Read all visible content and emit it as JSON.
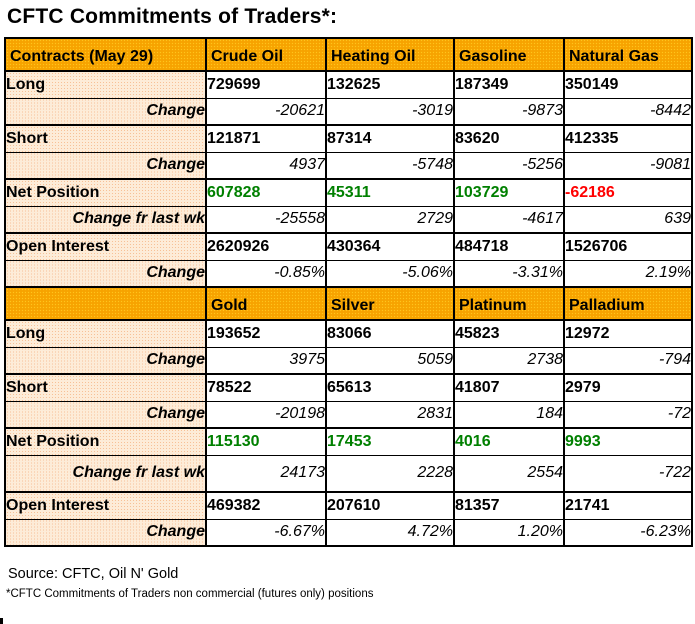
{
  "title": "CFTC Commitments of Traders*:",
  "footer": {
    "source": "Source: CFTC, Oil N' Gold",
    "note": "*CFTC Commitments of Traders non commercial (futures only) positions"
  },
  "colors": {
    "header_orange": "#F7A300",
    "label_peach": "#FBD9BC",
    "positive_green": "#008000",
    "negative_red": "#FF0000",
    "border_black": "#000000"
  },
  "table": {
    "sections": [
      {
        "header": {
          "label": "Contracts (May 29)",
          "columns": [
            "Crude Oil",
            "Heating Oil",
            "Gasoline",
            "Natural Gas"
          ]
        },
        "rows": [
          {
            "label": "Long",
            "type": "value",
            "values": [
              "729699",
              "132625",
              "187349",
              "350149"
            ]
          },
          {
            "label": "Change",
            "type": "change",
            "values": [
              "-20621",
              "-3019",
              "-9873",
              "-8442"
            ]
          },
          {
            "label": "Short",
            "type": "value",
            "values": [
              "121871",
              "87314",
              "83620",
              "412335"
            ]
          },
          {
            "label": "Change",
            "type": "change",
            "values": [
              "4937",
              "-5748",
              "-5256",
              "-9081"
            ]
          },
          {
            "label": "Net Position",
            "type": "net",
            "values": [
              "607828",
              "45311",
              "103729",
              "-62186"
            ]
          },
          {
            "label": "Change fr last wk",
            "type": "change",
            "values": [
              "-25558",
              "2729",
              "-4617",
              "639"
            ]
          },
          {
            "label": "Open Interest",
            "type": "value",
            "values": [
              "2620926",
              "430364",
              "484718",
              "1526706"
            ]
          },
          {
            "label": "Change",
            "type": "change",
            "values": [
              "-0.85%",
              "-5.06%",
              "-3.31%",
              "2.19%"
            ]
          }
        ]
      },
      {
        "header": {
          "label": "",
          "columns": [
            "Gold",
            "Silver",
            "Platinum",
            "Palladium"
          ]
        },
        "rows": [
          {
            "label": "Long",
            "type": "value",
            "values": [
              "193652",
              "83066",
              "45823",
              "12972"
            ]
          },
          {
            "label": "Change",
            "type": "change",
            "values": [
              "3975",
              "5059",
              "2738",
              "-794"
            ]
          },
          {
            "label": "Short",
            "type": "value",
            "values": [
              "78522",
              "65613",
              "41807",
              "2979"
            ]
          },
          {
            "label": "Change",
            "type": "change",
            "values": [
              "-20198",
              "2831",
              "184",
              "-72"
            ]
          },
          {
            "label": "Net Position",
            "type": "net",
            "values": [
              "115130",
              "17453",
              "4016",
              "9993"
            ]
          },
          {
            "label": "Change fr last wk",
            "type": "change",
            "values": [
              "24173",
              "2228",
              "2554",
              "-722"
            ]
          },
          {
            "label": "Open Interest",
            "type": "value",
            "values": [
              "469382",
              "207610",
              "81357",
              "21741"
            ]
          },
          {
            "label": "Change",
            "type": "change",
            "values": [
              "-6.67%",
              "4.72%",
              "1.20%",
              "-6.23%"
            ]
          }
        ]
      }
    ]
  },
  "chart_data": [
    {
      "type": "table",
      "title": "CFTC Commitments of Traders*:",
      "columns": [
        "Contracts (May 29)",
        "Crude Oil",
        "Heating Oil",
        "Gasoline",
        "Natural Gas"
      ],
      "rows": [
        [
          "Long",
          729699,
          132625,
          187349,
          350149
        ],
        [
          "Change",
          -20621,
          -3019,
          -9873,
          -8442
        ],
        [
          "Short",
          121871,
          87314,
          83620,
          412335
        ],
        [
          "Change",
          4937,
          -5748,
          -5256,
          -9081
        ],
        [
          "Net Position",
          607828,
          45311,
          103729,
          -62186
        ],
        [
          "Change fr last wk",
          -25558,
          2729,
          -4617,
          639
        ],
        [
          "Open Interest",
          2620926,
          430364,
          484718,
          1526706
        ],
        [
          "Change",
          "-0.85%",
          "-5.06%",
          "-3.31%",
          "2.19%"
        ]
      ]
    },
    {
      "type": "table",
      "title": "",
      "columns": [
        "",
        "Gold",
        "Silver",
        "Platinum",
        "Palladium"
      ],
      "rows": [
        [
          "Long",
          193652,
          83066,
          45823,
          12972
        ],
        [
          "Change",
          3975,
          5059,
          2738,
          -794
        ],
        [
          "Short",
          78522,
          65613,
          41807,
          2979
        ],
        [
          "Change",
          -20198,
          2831,
          184,
          -72
        ],
        [
          "Net Position",
          115130,
          17453,
          4016,
          9993
        ],
        [
          "Change fr last wk",
          24173,
          2228,
          2554,
          -722
        ],
        [
          "Open Interest",
          469382,
          207610,
          81357,
          21741
        ],
        [
          "Change",
          "-6.67%",
          "4.72%",
          "1.20%",
          "-6.23%"
        ]
      ]
    }
  ]
}
